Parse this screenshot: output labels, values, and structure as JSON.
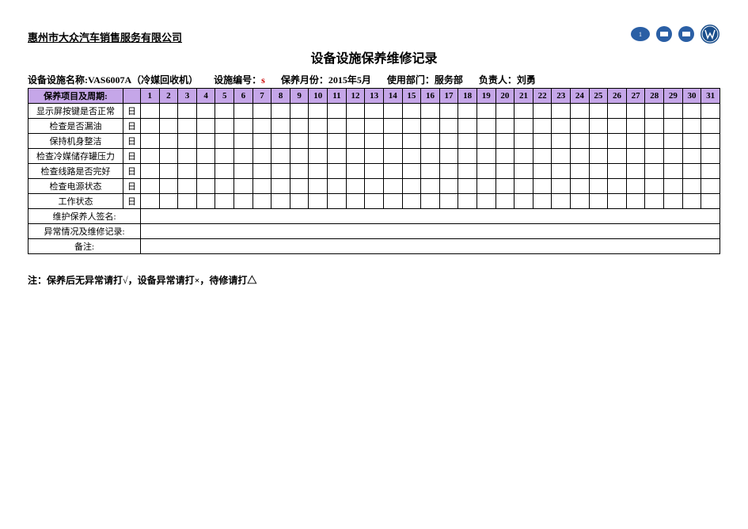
{
  "company": "惠州市大众汽车销售服务有限公司",
  "title": "设备设施保养维修记录",
  "info": {
    "name_label": "设备设施名称:",
    "name_value": "VAS6007A（冷媒回收机）",
    "code_label": "设施编号：",
    "code_value": "s",
    "month_label": "保养月份：",
    "month_value": "2015年5月",
    "dept_label": "使用部门：",
    "dept_value": "服务部",
    "owner_label": "负责人：",
    "owner_value": "刘勇"
  },
  "header_item": "保养项目及周期:",
  "days": [
    "1",
    "2",
    "3",
    "4",
    "5",
    "6",
    "7",
    "8",
    "9",
    "10",
    "11",
    "12",
    "13",
    "14",
    "15",
    "16",
    "17",
    "18",
    "19",
    "20",
    "21",
    "22",
    "23",
    "24",
    "25",
    "26",
    "27",
    "28",
    "29",
    "30",
    "31"
  ],
  "items": [
    {
      "name": "显示屏按键是否正常",
      "freq": "日"
    },
    {
      "name": "检查是否漏油",
      "freq": "日"
    },
    {
      "name": "保持机身整洁",
      "freq": "日"
    },
    {
      "name": "检查冷媒储存罐压力",
      "freq": "日"
    },
    {
      "name": "检查线路是否完好",
      "freq": "日"
    },
    {
      "name": "检查电源状态",
      "freq": "日"
    },
    {
      "name": "工作状态",
      "freq": "日"
    }
  ],
  "sig_label": "维护保养人签名:",
  "abn_label": "异常情况及维修记录:",
  "remark_label": "备注:",
  "footer_note": "注：保养后无异常请打√，设备异常请打×，待修请打△",
  "header_bg": "#c5a6e8",
  "logo_colors": {
    "faw": "#2a5fa5",
    "vw": "#1b4f8c"
  }
}
